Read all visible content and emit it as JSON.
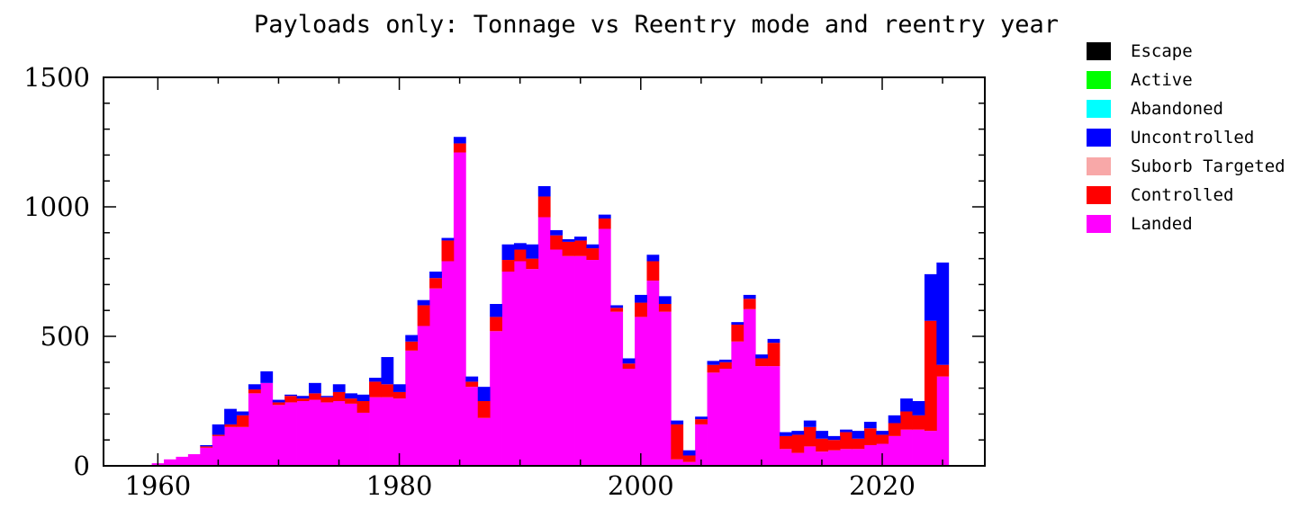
{
  "chart_data": {
    "type": "bar",
    "stacked": true,
    "title": "Payloads only: Tonnage vs Reentry mode and reentry year",
    "xlabel": "",
    "ylabel": "",
    "xlim": [
      1955.5,
      2028.5
    ],
    "ylim": [
      0,
      1500
    ],
    "x_ticks": [
      1960,
      1980,
      2000,
      2020
    ],
    "y_ticks": [
      0,
      500,
      1000,
      1500
    ],
    "x_tick_labels": [
      "1960",
      "1980",
      "2000",
      "2020"
    ],
    "y_tick_labels": [
      "0",
      "500",
      "1000",
      "1500"
    ],
    "grid": false,
    "legend_position": "right, outside plot area, top",
    "legend": [
      "Escape",
      "Active",
      "Abandoned",
      "Uncontrolled",
      "Suborb Targeted",
      "Controlled",
      "Landed"
    ],
    "colors": {
      "Escape": "#000000",
      "Active": "#00ff00",
      "Abandoned": "#00ffff",
      "Uncontrolled": "#0000ff",
      "Suborb Targeted": "#f8a8a8",
      "Controlled": "#ff0000",
      "Landed": "#ff00ff"
    },
    "x": [
      1957,
      1958,
      1959,
      1960,
      1961,
      1962,
      1963,
      1964,
      1965,
      1966,
      1967,
      1968,
      1969,
      1970,
      1971,
      1972,
      1973,
      1974,
      1975,
      1976,
      1977,
      1978,
      1979,
      1980,
      1981,
      1982,
      1983,
      1984,
      1985,
      1986,
      1987,
      1988,
      1989,
      1990,
      1991,
      1992,
      1993,
      1994,
      1995,
      1996,
      1997,
      1998,
      1999,
      2000,
      2001,
      2002,
      2003,
      2004,
      2005,
      2006,
      2007,
      2008,
      2009,
      2010,
      2011,
      2012,
      2013,
      2014,
      2015,
      2016,
      2017,
      2018,
      2019,
      2020,
      2021,
      2022,
      2023,
      2024,
      2025
    ],
    "series": [
      {
        "name": "Landed",
        "values": [
          0,
          0,
          2,
          10,
          25,
          35,
          45,
          70,
          115,
          150,
          150,
          280,
          320,
          235,
          245,
          250,
          255,
          245,
          250,
          240,
          205,
          265,
          265,
          260,
          445,
          540,
          685,
          790,
          1210,
          305,
          185,
          520,
          750,
          790,
          760,
          960,
          835,
          810,
          810,
          795,
          915,
          595,
          375,
          575,
          715,
          595,
          25,
          15,
          160,
          360,
          375,
          480,
          605,
          385,
          385,
          65,
          50,
          75,
          55,
          60,
          65,
          65,
          80,
          85,
          115,
          140,
          140,
          135,
          345
        ]
      },
      {
        "name": "Controlled",
        "values": [
          0,
          0,
          0,
          0,
          0,
          0,
          0,
          5,
          5,
          10,
          45,
          15,
          0,
          10,
          25,
          10,
          25,
          20,
          35,
          20,
          45,
          60,
          50,
          25,
          35,
          80,
          40,
          80,
          35,
          20,
          65,
          55,
          45,
          45,
          40,
          80,
          55,
          55,
          60,
          45,
          40,
          15,
          20,
          55,
          75,
          30,
          135,
          25,
          20,
          30,
          25,
          65,
          40,
          30,
          90,
          50,
          70,
          75,
          50,
          40,
          65,
          40,
          65,
          35,
          50,
          70,
          55,
          425,
          45
        ]
      },
      {
        "name": "Uncontrolled",
        "values": [
          0,
          0,
          0,
          0,
          0,
          0,
          0,
          5,
          40,
          60,
          15,
          20,
          45,
          10,
          5,
          10,
          40,
          5,
          30,
          20,
          25,
          15,
          105,
          30,
          25,
          20,
          25,
          10,
          25,
          20,
          55,
          50,
          60,
          25,
          55,
          40,
          20,
          10,
          15,
          15,
          15,
          10,
          20,
          30,
          25,
          30,
          15,
          20,
          10,
          15,
          10,
          10,
          15,
          15,
          15,
          15,
          15,
          25,
          30,
          15,
          10,
          30,
          25,
          15,
          30,
          50,
          55,
          180,
          395
        ]
      }
    ]
  }
}
